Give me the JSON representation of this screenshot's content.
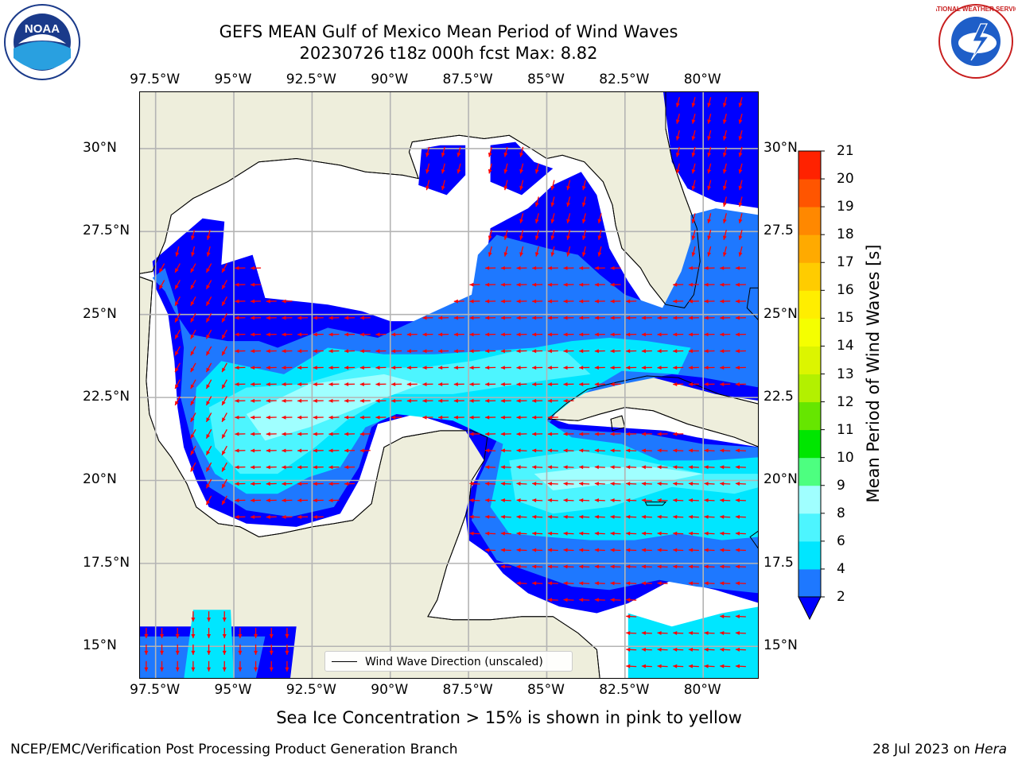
{
  "title": {
    "line1": "GEFS MEAN Gulf of Mexico Mean Period of Wind Waves",
    "line2": "20230726 t18z 000h fcst   Max: 8.82"
  },
  "axes": {
    "lon_labels": [
      "97.5°W",
      "95°W",
      "92.5°W",
      "90°W",
      "87.5°W",
      "85°W",
      "82.5°W",
      "80°W"
    ],
    "lon_values": [
      -97.5,
      -95,
      -92.5,
      -90,
      -87.5,
      -85,
      -82.5,
      -80
    ],
    "lat_labels_left": [
      "30°N",
      "27.5°N",
      "25°N",
      "22.5°N",
      "20°N",
      "17.5°N",
      "15°N"
    ],
    "lat_labels_right": [
      "30°N",
      "27.5",
      "25°N",
      "22.5",
      "20°N",
      "17.5",
      "15°N"
    ],
    "lat_values": [
      30,
      27.5,
      25,
      22.5,
      20,
      17.5,
      15
    ],
    "lon_range": [
      -98,
      -78.2
    ],
    "lat_range": [
      14,
      31.7
    ]
  },
  "legend": {
    "label": "Wind Wave Direction (unscaled)"
  },
  "colorbar": {
    "label": "Mean Period of Wind Waves [s]",
    "ticks": [
      2,
      4,
      6,
      8,
      9,
      10,
      11,
      12,
      13,
      14,
      15,
      16,
      17,
      18,
      19,
      20,
      21
    ],
    "colors": [
      "#1e78ff",
      "#00e6ff",
      "#4df5ff",
      "#a0ffff",
      "#4dff80",
      "#00e600",
      "#66e600",
      "#b3f000",
      "#dcf500",
      "#f5ff00",
      "#ffee00",
      "#ffcc00",
      "#ffaa00",
      "#ff8800",
      "#ff5500",
      "#ff2200"
    ],
    "under_color": "#0000ff"
  },
  "colors": {
    "land": "#eeeedc",
    "band_under_2s": "#0000ff",
    "band_2_4s": "#1e78ff",
    "band_4_6s": "#00e6ff",
    "band_6_8s": "#4df5ff",
    "band_8_9s": "#a0ffff",
    "arrow": "#ff0000",
    "grid": "#b4b4b4"
  },
  "chart_data": {
    "type": "map",
    "variable": "Mean Period of Wind Waves [s]",
    "max_value": 8.82,
    "region": "Gulf of Mexico"
  },
  "note": "Sea Ice Concentration > 15% is shown in pink to yellow",
  "footer": {
    "left": "NCEP/EMC/Verification Post Processing Product Generation Branch",
    "right_date": "28 Jul 2023 on ",
    "right_host": "Hera"
  },
  "logos": {
    "left": "NOAA",
    "right": "NATIONAL WEATHER SERVICE"
  }
}
